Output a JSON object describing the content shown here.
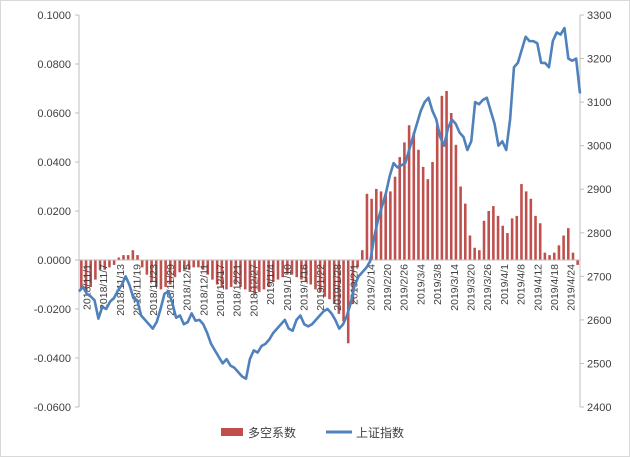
{
  "chart_data": {
    "type": "bar+line",
    "title": "",
    "legend_position": "bottom",
    "grid": false,
    "y_left": {
      "min": -0.06,
      "max": 0.1,
      "ticks": [
        "0.1000",
        "0.0800",
        "0.0600",
        "0.0400",
        "0.0200",
        "0.0000",
        "-0.0200",
        "-0.0400",
        "-0.0600"
      ]
    },
    "y_right": {
      "min": 2400,
      "max": 3300,
      "ticks": [
        "3300",
        "3200",
        "3100",
        "3000",
        "2900",
        "2800",
        "2700",
        "2600",
        "2500",
        "2400"
      ]
    },
    "x_tick_labels": [
      "2018/11/1",
      "2018/11/7",
      "2018/11/13",
      "2018/11/19",
      "2018/11/23",
      "2018/11/29",
      "2018/12/5",
      "2018/12/11",
      "2018/12/17",
      "2018/12/21",
      "2018/12/27",
      "2019/1/4",
      "2019/1/10",
      "2019/1/16",
      "2019/1/22",
      "2019/1/28",
      "2019/2/1",
      "2019/2/14",
      "2019/2/20",
      "2019/2/26",
      "2019/3/4",
      "2019/3/8",
      "2019/3/14",
      "2019/3/20",
      "2019/3/26",
      "2019/4/1",
      "2019/4/8",
      "2019/4/12",
      "2019/4/18",
      "2019/4/24"
    ],
    "series": [
      {
        "name": "多空系数",
        "type": "bar",
        "color": "#c0504d",
        "values": [
          -0.012,
          -0.013,
          -0.011,
          -0.008,
          -0.004,
          -0.004,
          -0.003,
          -0.002,
          0.001,
          0.002,
          0.002,
          0.004,
          0.002,
          -0.003,
          -0.006,
          -0.009,
          -0.011,
          -0.012,
          -0.011,
          -0.01,
          -0.007,
          -0.005,
          -0.004,
          -0.004,
          -0.003,
          -0.003,
          -0.004,
          -0.006,
          -0.008,
          -0.01,
          -0.011,
          -0.012,
          -0.011,
          -0.01,
          -0.011,
          -0.012,
          -0.013,
          -0.014,
          -0.013,
          -0.012,
          -0.011,
          -0.009,
          -0.008,
          -0.007,
          -0.006,
          -0.006,
          -0.007,
          -0.008,
          -0.009,
          -0.01,
          -0.012,
          -0.013,
          -0.015,
          -0.016,
          -0.018,
          -0.022,
          -0.025,
          -0.034,
          -0.018,
          -0.003,
          0.004,
          0.027,
          0.025,
          0.029,
          0.028,
          0.027,
          0.028,
          0.034,
          0.042,
          0.048,
          0.055,
          0.052,
          0.045,
          0.038,
          0.033,
          0.04,
          0.055,
          0.067,
          0.069,
          0.06,
          0.047,
          0.03,
          0.023,
          0.01,
          0.005,
          0.004,
          0.016,
          0.02,
          0.022,
          0.018,
          0.014,
          0.011,
          0.017,
          0.018,
          0.031,
          0.028,
          0.025,
          0.018,
          0.015,
          0.003,
          0.002,
          0.003,
          0.006,
          0.01,
          0.013,
          0.003,
          -0.002
        ]
      },
      {
        "name": "上证指数",
        "type": "line",
        "color": "#4f81bd",
        "values": [
          2665,
          2676,
          2660,
          2654,
          2645,
          2603,
          2630,
          2625,
          2642,
          2650,
          2667,
          2680,
          2700,
          2680,
          2650,
          2645,
          2610,
          2600,
          2590,
          2580,
          2595,
          2625,
          2660,
          2665,
          2640,
          2605,
          2610,
          2590,
          2595,
          2615,
          2598,
          2600,
          2590,
          2570,
          2545,
          2530,
          2515,
          2500,
          2510,
          2495,
          2490,
          2480,
          2470,
          2465,
          2510,
          2530,
          2525,
          2540,
          2545,
          2555,
          2570,
          2580,
          2590,
          2600,
          2580,
          2575,
          2600,
          2610,
          2590,
          2585,
          2590,
          2600,
          2610,
          2620,
          2625,
          2615,
          2600,
          2580,
          2590,
          2610,
          2640,
          2680,
          2700,
          2710,
          2720,
          2735,
          2790,
          2830,
          2860,
          2890,
          2930,
          2960,
          2950,
          2955,
          2960,
          2990,
          3020,
          3050,
          3080,
          3100,
          3110,
          3080,
          3060,
          3020,
          3000,
          3040,
          3060,
          3050,
          3030,
          3020,
          2990,
          3010,
          3100,
          3095,
          3105,
          3110,
          3080,
          3050,
          3000,
          3010,
          2990,
          3060,
          3180,
          3190,
          3220,
          3250,
          3240,
          3240,
          3235,
          3190,
          3190,
          3180,
          3240,
          3260,
          3255,
          3270,
          3200,
          3195,
          3200,
          3120
        ]
      }
    ]
  }
}
